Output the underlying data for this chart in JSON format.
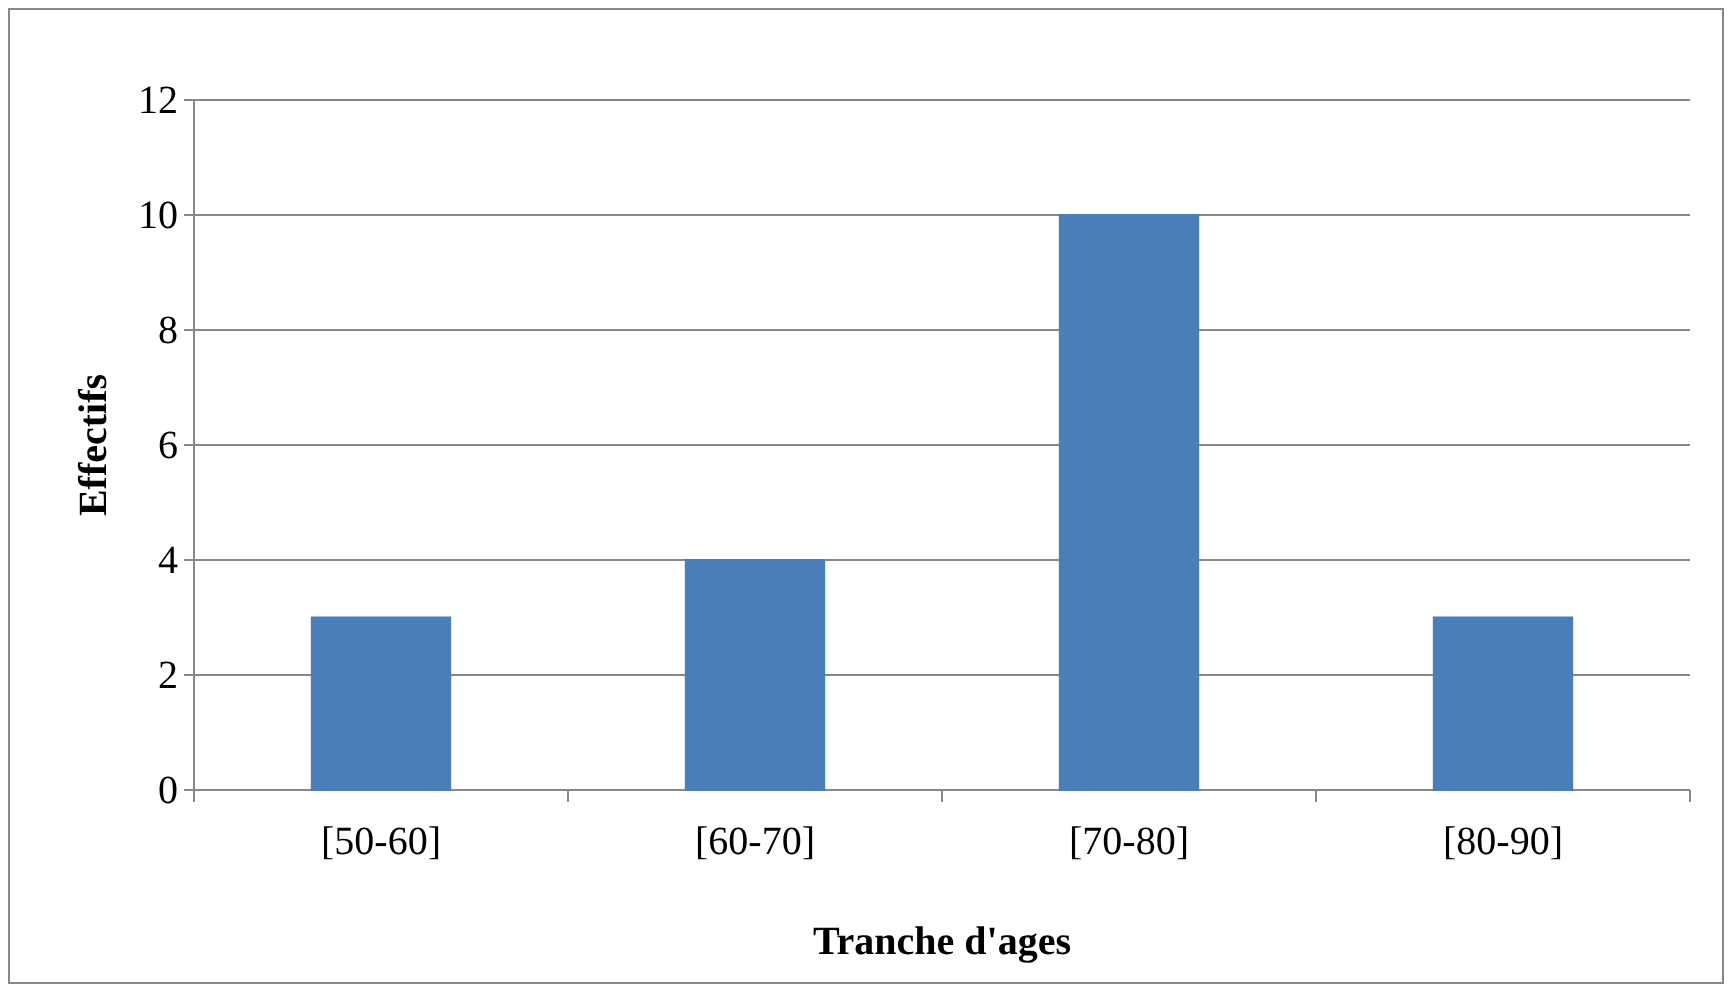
{
  "chart_data": {
    "type": "bar",
    "xlabel": "Tranche d'ages",
    "ylabel": "Effectifs",
    "categories": [
      "[50-60]",
      "[60-70]",
      "[70-80]",
      "[80-90]"
    ],
    "values": [
      3,
      4,
      10,
      3
    ],
    "color": "#4a7ebb",
    "ylim": [
      0,
      12
    ],
    "yticks": [
      0,
      2,
      4,
      6,
      8,
      10,
      12
    ],
    "grid": "y"
  }
}
